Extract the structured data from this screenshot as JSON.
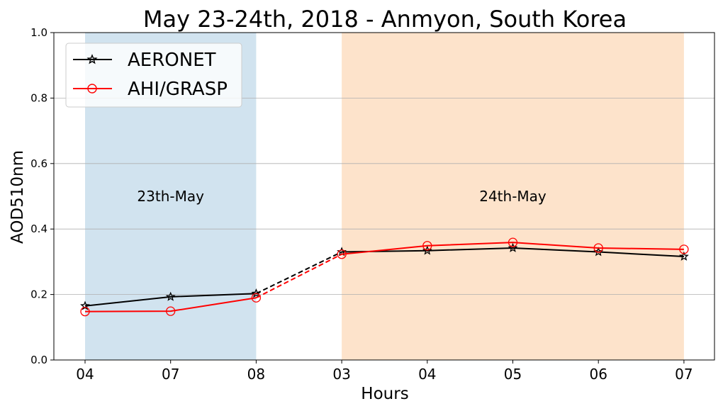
{
  "chart_data": {
    "type": "line",
    "title": "May 23-24th, 2018 - Anmyon, South Korea",
    "xlabel": "Hours",
    "ylabel": "AOD510nm",
    "categories": [
      "04",
      "07",
      "08",
      "03",
      "04",
      "05",
      "06",
      "07"
    ],
    "ylim": [
      0,
      1.0
    ],
    "yticks": [
      "0.0",
      "0.2",
      "0.4",
      "0.6",
      "0.8",
      "1.0"
    ],
    "grid": "horizontal",
    "legend_position": "top-left",
    "series": [
      {
        "name": "AERONET",
        "color": "#000000",
        "marker": "star",
        "values": [
          0.165,
          0.193,
          0.203,
          0.33,
          0.334,
          0.342,
          0.33,
          0.316
        ]
      },
      {
        "name": "AHI/GRASP",
        "color": "#ff0000",
        "marker": "circle",
        "values": [
          0.148,
          0.149,
          0.19,
          0.323,
          0.349,
          0.359,
          0.342,
          0.338
        ]
      }
    ],
    "gap_after_index": 2,
    "regions": [
      {
        "label": "23th-May",
        "start_index": 0,
        "end_index": 2,
        "color": "#d1e3ef"
      },
      {
        "label": "24th-May",
        "start_index": 3,
        "end_index": 7,
        "color": "#fde3cb"
      }
    ]
  }
}
